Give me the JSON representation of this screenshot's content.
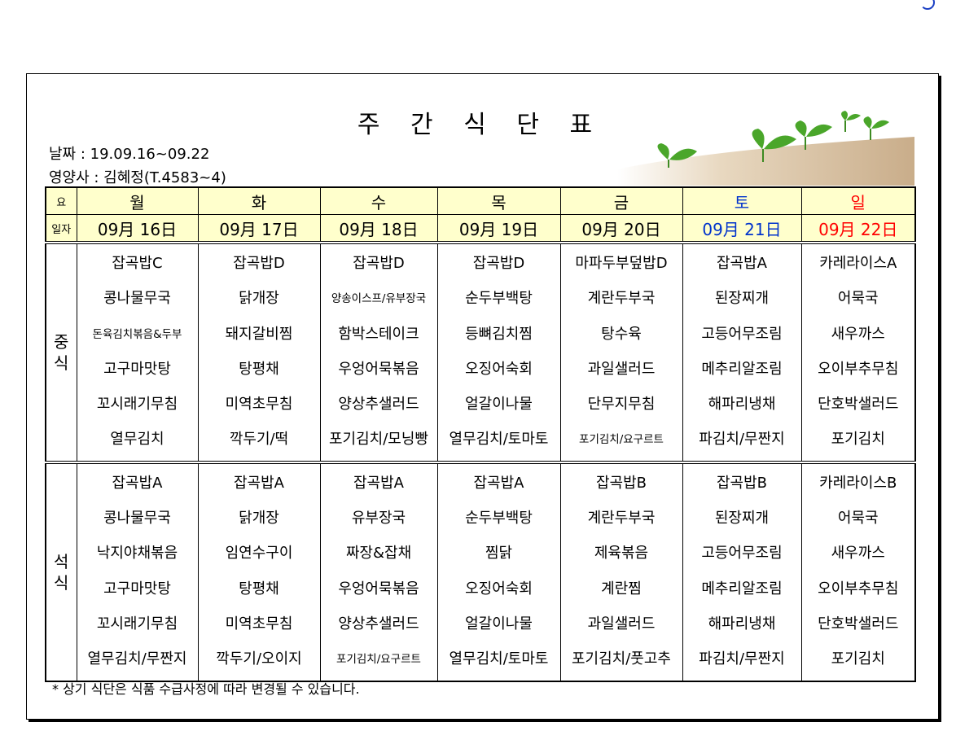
{
  "title": "주 간 식 단 표",
  "date_line": "날짜 : 19.09.16~09.22",
  "dietitian_line": "영양사 : 김혜정(T.4583~4)",
  "header_labels": {
    "day": "요",
    "date": "일자"
  },
  "meals": {
    "lunch": "중\n식",
    "dinner": "석\n식"
  },
  "colors": {
    "header_bg": "#ffffcc",
    "saturday": "#0033cc",
    "sunday": "#ff0000"
  },
  "days": [
    {
      "day": "월",
      "date": "09月 16日",
      "color": "#000000"
    },
    {
      "day": "화",
      "date": "09月 17日",
      "color": "#000000"
    },
    {
      "day": "수",
      "date": "09月 18日",
      "color": "#000000"
    },
    {
      "day": "목",
      "date": "09月 19日",
      "color": "#000000"
    },
    {
      "day": "금",
      "date": "09月 20日",
      "color": "#000000"
    },
    {
      "day": "토",
      "date": "09月 21日",
      "color": "#0033cc"
    },
    {
      "day": "일",
      "date": "09月 22日",
      "color": "#ff0000"
    }
  ],
  "lunch": [
    [
      "잡곡밥C",
      "콩나물무국",
      "돈육김치볶음&두부",
      "고구마맛탕",
      "꼬시래기무침",
      "열무김치"
    ],
    [
      "잡곡밥D",
      "닭개장",
      "돼지갈비찜",
      "탕평채",
      "미역초무침",
      "깍두기/떡"
    ],
    [
      "잡곡밥D",
      "양송이스프/유부장국",
      "함박스테이크",
      "우엉어묵볶음",
      "양상추샐러드",
      "포기김치/모닝빵"
    ],
    [
      "잡곡밥D",
      "순두부백탕",
      "등뼈김치찜",
      "오징어숙회",
      "얼갈이나물",
      "열무김치/토마토"
    ],
    [
      "마파두부덮밥D",
      "계란두부국",
      "탕수육",
      "과일샐러드",
      "단무지무침",
      "포기김치/요구르트"
    ],
    [
      "잡곡밥A",
      "된장찌개",
      "고등어무조림",
      "메추리알조림",
      "해파리냉채",
      "파김치/무짠지"
    ],
    [
      "카레라이스A",
      "어묵국",
      "새우까스",
      "오이부추무침",
      "단호박샐러드",
      "포기김치"
    ]
  ],
  "dinner": [
    [
      "잡곡밥A",
      "콩나물무국",
      "낙지야채볶음",
      "고구마맛탕",
      "꼬시래기무침",
      "열무김치/무짠지"
    ],
    [
      "잡곡밥A",
      "닭개장",
      "임연수구이",
      "탕평채",
      "미역초무침",
      "깍두기/오이지"
    ],
    [
      "잡곡밥A",
      "유부장국",
      "짜장&잡채",
      "우엉어묵볶음",
      "양상추샐러드",
      "포기김치/요구르트"
    ],
    [
      "잡곡밥A",
      "순두부백탕",
      "찜닭",
      "오징어숙회",
      "얼갈이나물",
      "열무김치/토마토"
    ],
    [
      "잡곡밥B",
      "계란두부국",
      "제육볶음",
      "계란찜",
      "과일샐러드",
      "포기김치/풋고추"
    ],
    [
      "잡곡밥B",
      "된장찌개",
      "고등어무조림",
      "메추리알조림",
      "해파리냉채",
      "파김치/무짠지"
    ],
    [
      "카레라이스B",
      "어묵국",
      "새우까스",
      "오이부추무침",
      "단호박샐러드",
      "포기김치"
    ]
  ],
  "note": "* 상기 식단은 식품 수급사정에 따라 변경될 수 있습니다.",
  "decoration": {
    "image": "sprouts-in-soil"
  }
}
